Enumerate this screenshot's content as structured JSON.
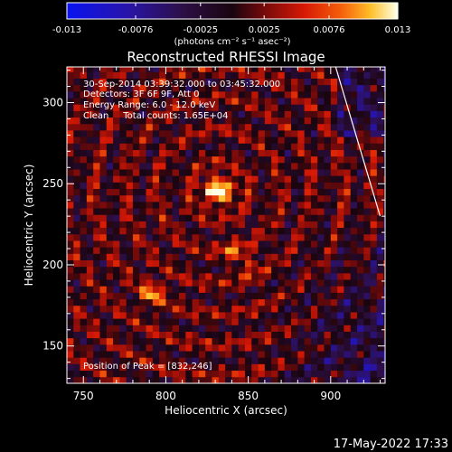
{
  "chart_data": {
    "type": "heatmap",
    "title": "Reconstructed RHESSI Image",
    "xlabel": "Heliocentric X (arcsec)",
    "ylabel": "Heliocentric Y (arcsec)",
    "xlim": [
      740,
      933
    ],
    "ylim": [
      127,
      322
    ],
    "x_ticks": [
      750,
      800,
      850,
      900
    ],
    "y_ticks": [
      150,
      200,
      250,
      300
    ],
    "colorbar": {
      "min": -0.013,
      "max": 0.013,
      "tick_values": [
        -0.013,
        -0.0076,
        -0.0025,
        0.0025,
        0.0076,
        0.013
      ],
      "tick_labels": [
        "-0.013",
        "-0.0076",
        "-0.0025",
        "0.0025",
        "0.0076",
        "0.013"
      ],
      "unit_label": "(photons cm⁻² s⁻¹ asec⁻²)"
    },
    "annotations": {
      "time_range": "30-Sep-2014 03:39:32.000 to 03:45:32.000",
      "detectors": "Detectors: 3F 6F 9F, Att 0",
      "energy_range": "Energy Range: 6.0 - 12.0 keV",
      "clean_counts": "Clean     Total counts: 1.65E+04",
      "peak_position": "Position of Peak = [832,246]"
    },
    "peak": {
      "x": 832,
      "y": 246,
      "value": 0.013
    },
    "secondary_sources": [
      {
        "x": 792,
        "y": 183,
        "value": 0.008
      },
      {
        "x": 840,
        "y": 210,
        "value": 0.005
      },
      {
        "x": 850,
        "y": 200,
        "value": 0.0045
      }
    ],
    "limb_line": [
      [
        903,
        322
      ],
      [
        930,
        230
      ]
    ],
    "grid": false
  },
  "footer": {
    "timestamp": "17-May-2022 17:33"
  }
}
